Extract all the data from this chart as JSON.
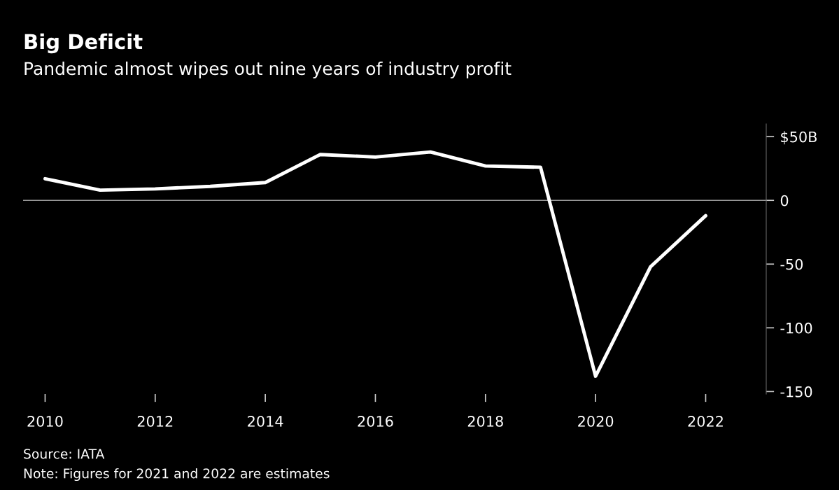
{
  "chart_data": {
    "type": "line",
    "title": "Big Deficit",
    "subtitle": "Pandemic almost wipes out nine years of industry profit",
    "x": [
      2010,
      2011,
      2012,
      2013,
      2014,
      2015,
      2016,
      2017,
      2018,
      2019,
      2020,
      2021,
      2022
    ],
    "series": [
      {
        "color": "#ffffff",
        "values": [
          17,
          8,
          9,
          11,
          14,
          36,
          34,
          38,
          27,
          26,
          -138,
          -52,
          -12
        ]
      }
    ],
    "xlim": [
      2009.6,
      2023.1
    ],
    "xticks": [
      2010,
      2012,
      2014,
      2016,
      2018,
      2020,
      2022
    ],
    "ylim": [
      -152,
      60
    ],
    "yticks": [
      {
        "value": 50,
        "label": "$50B"
      },
      0,
      -50,
      -100,
      -150
    ],
    "ref_lines": [
      {
        "axis": "y",
        "value": 0,
        "color": "#9a9a9a"
      }
    ],
    "grid": false,
    "legend": false,
    "annotations": [
      "Source: IATA",
      "Note: Figures for 2021 and 2022 are estimates"
    ]
  }
}
